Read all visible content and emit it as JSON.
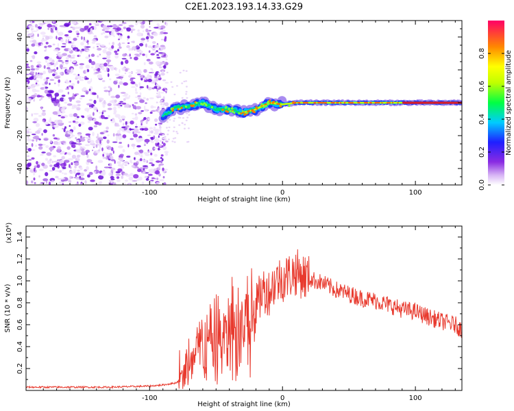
{
  "title": "C2E1.2023.193.14.33.G29",
  "chart_data": [
    {
      "type": "heatmap",
      "xlabel": "Height of straight line (km)",
      "ylabel": "Frequency (Hz)",
      "xlim": [
        -193,
        135
      ],
      "ylim": [
        -50,
        50
      ],
      "x_ticks": [
        -100,
        0,
        100
      ],
      "y_ticks": [
        -40,
        -20,
        0,
        20,
        40
      ],
      "noise_region_x": [
        -193,
        -87
      ],
      "ridge_x": [
        -90,
        -80,
        -70,
        -60,
        -50,
        -40,
        -30,
        -20,
        -10,
        0,
        10,
        20,
        40,
        60,
        80,
        100,
        135
      ],
      "ridge_y": [
        -8,
        -3,
        -2,
        0,
        -4,
        -4,
        -6,
        -4,
        0,
        -1,
        0,
        0,
        0,
        0,
        0,
        0,
        0
      ],
      "colorbar": {
        "label": "Normalized spectral amplitude",
        "ticks": [
          "0.0",
          "0.2",
          "0.4",
          "0.6",
          "0.8"
        ],
        "range": [
          0,
          1
        ]
      }
    },
    {
      "type": "line",
      "xlabel": "Height of straight line (km)",
      "ylabel": "SNR (10 * v/v)",
      "y_multiplier": "(x10⁴)",
      "xlim": [
        -193,
        135
      ],
      "ylim": [
        0,
        1.5
      ],
      "x_ticks": [
        -100,
        0,
        100
      ],
      "y_ticks": [
        "0.2",
        "0.4",
        "0.6",
        "0.8",
        "1.0",
        "1.2",
        "1.4"
      ],
      "series": [
        {
          "color": "#e83a2e",
          "x": [
            -193,
            -170,
            -150,
            -130,
            -100,
            -90,
            -80,
            -75,
            -72,
            -70,
            -65,
            -60,
            -55,
            -50,
            -45,
            -40,
            -35,
            -30,
            -25,
            -20,
            -15,
            -10,
            -5,
            0,
            5,
            10,
            15,
            20,
            25,
            30,
            40,
            50,
            60,
            70,
            80,
            90,
            100,
            110,
            120,
            130,
            135
          ],
          "y": [
            0.03,
            0.03,
            0.03,
            0.03,
            0.04,
            0.05,
            0.07,
            0.12,
            0.22,
            0.16,
            0.3,
            0.42,
            0.36,
            0.5,
            0.4,
            0.55,
            0.5,
            0.58,
            0.65,
            0.75,
            0.92,
            0.9,
            1.0,
            1.02,
            1.05,
            1.08,
            1.05,
            1.02,
            1.0,
            0.98,
            0.92,
            0.88,
            0.84,
            0.82,
            0.78,
            0.74,
            0.72,
            0.67,
            0.63,
            0.6,
            0.55
          ]
        }
      ]
    }
  ]
}
